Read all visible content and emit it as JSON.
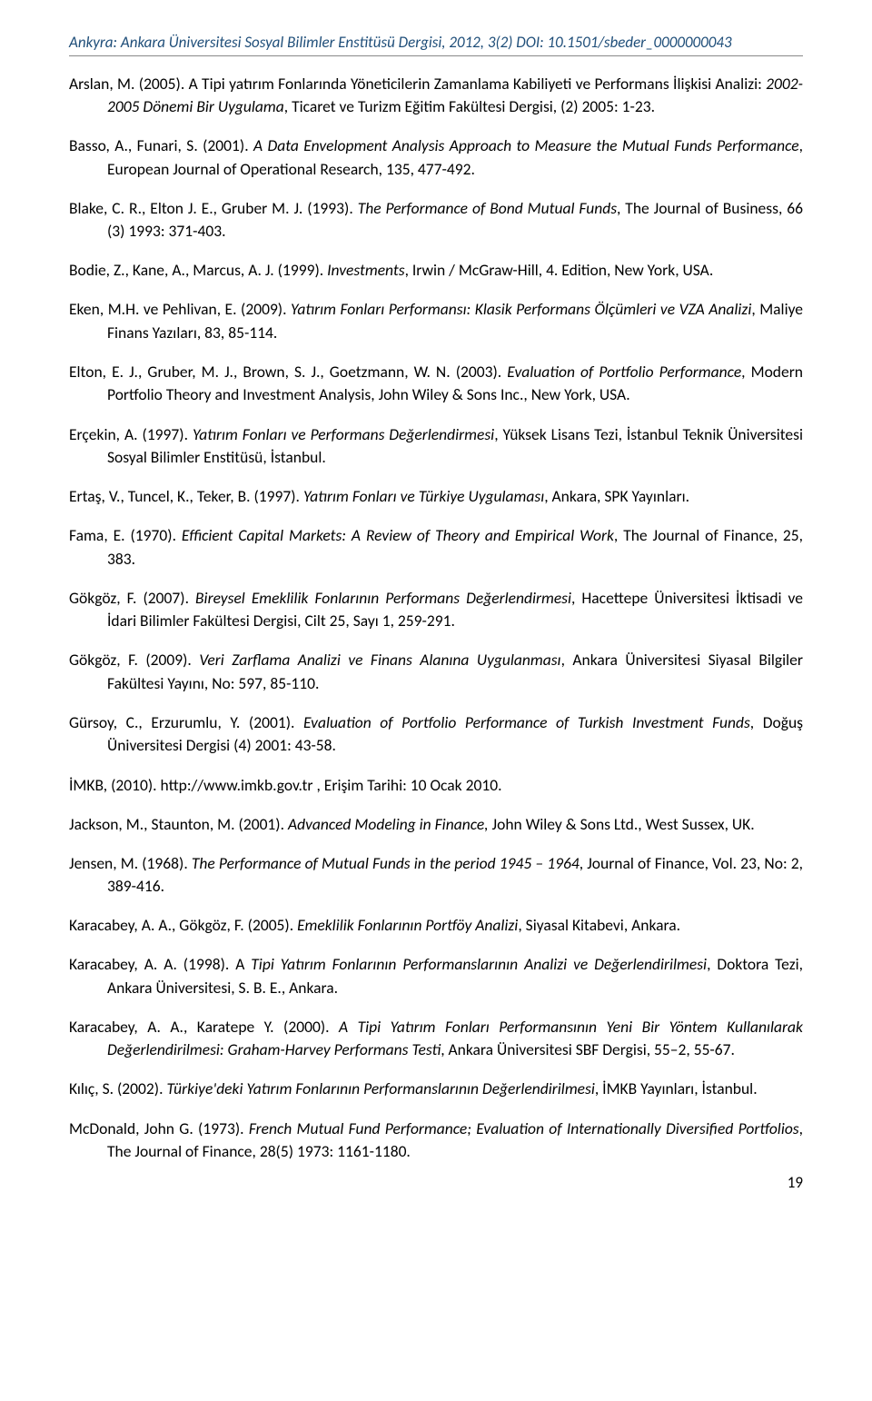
{
  "header": "Ankyra: Ankara Üniversitesi Sosyal Bilimler Enstitüsü Dergisi, 2012, 3(2) DOI: 10.1501/sbeder_0000000043",
  "page_number": "19",
  "refs": [
    [
      {
        "t": "Arslan, M. (2005). A Tipi yatırım Fonlarında Yöneticilerin Zamanlama Kabiliyeti ve Performans İlişkisi Analizi: "
      },
      {
        "t": "2002-2005 Dönemi Bir Uygulama",
        "i": true
      },
      {
        "t": ", Ticaret ve Turizm Eğitim Fakültesi Dergisi, (2) 2005: 1-23."
      }
    ],
    [
      {
        "t": "Basso, A., Funari, S. (2001). "
      },
      {
        "t": "A Data Envelopment Analysis Approach to Measure the Mutual Funds Performance",
        "i": true
      },
      {
        "t": ", European Journal of Operational Research, 135, 477-492."
      }
    ],
    [
      {
        "t": "Blake, C. R., Elton J. E., Gruber M. J. (1993). "
      },
      {
        "t": "The Performance of Bond Mutual Funds",
        "i": true
      },
      {
        "t": ", The Journal of Business, 66 (3) 1993: 371-403."
      }
    ],
    [
      {
        "t": "Bodie, Z., Kane, A., Marcus, A. J. (1999). "
      },
      {
        "t": "Investments",
        "i": true
      },
      {
        "t": ", Irwin / McGraw-Hill, 4. Edition, New York, USA."
      }
    ],
    [
      {
        "t": "Eken, M.H. ve Pehlivan, E. (2009). "
      },
      {
        "t": "Yatırım Fonları Performansı: Klasik Performans Ölçümleri ve VZA Analizi",
        "i": true
      },
      {
        "t": ", Maliye Finans Yazıları, 83, 85-114."
      }
    ],
    [
      {
        "t": "Elton, E. J., Gruber, M. J., Brown, S. J., Goetzmann, W. N. (2003). "
      },
      {
        "t": "Evaluation of Portfolio Performance",
        "i": true
      },
      {
        "t": ", Modern Portfolio Theory and Investment Analysis, John Wiley & Sons Inc., New York, USA."
      }
    ],
    [
      {
        "t": "Erçekin, A. (1997). "
      },
      {
        "t": "Yatırım Fonları ve Performans Değerlendirmesi",
        "i": true
      },
      {
        "t": ", Yüksek Lisans Tezi, İstanbul Teknik Üniversitesi Sosyal Bilimler Enstitüsü, İstanbul."
      }
    ],
    [
      {
        "t": "Ertaş, V., Tuncel, K., Teker, B. (1997). "
      },
      {
        "t": "Yatırım Fonları ve Türkiye Uygulaması",
        "i": true
      },
      {
        "t": ", Ankara, SPK Yayınları."
      }
    ],
    [
      {
        "t": "Fama, E. (1970). "
      },
      {
        "t": "Efficient Capital Markets: A Review of Theory and Empirical Work",
        "i": true
      },
      {
        "t": ", The Journal of Finance, 25, 383."
      }
    ],
    [
      {
        "t": "Gökgöz, F. (2007). "
      },
      {
        "t": "Bireysel Emeklilik Fonlarının Performans Değerlendirmesi",
        "i": true
      },
      {
        "t": ", Hacettepe Üniversitesi İktisadi ve İdari Bilimler Fakültesi Dergisi, Cilt 25, Sayı 1, 259-291."
      }
    ],
    [
      {
        "t": "Gökgöz, F. (2009). "
      },
      {
        "t": "Veri Zarflama Analizi ve Finans Alanına Uygulanması",
        "i": true
      },
      {
        "t": ", Ankara Üniversitesi Siyasal Bilgiler Fakültesi Yayını, No: 597, 85-110."
      }
    ],
    [
      {
        "t": "Gürsoy, C., Erzurumlu, Y. (2001). "
      },
      {
        "t": "Evaluation of Portfolio Performance of Turkish Investment Funds",
        "i": true
      },
      {
        "t": ", Doğuş Üniversitesi Dergisi (4) 2001: 43-58."
      }
    ],
    [
      {
        "t": "İMKB, (2010). http://www.imkb.gov.tr , Erişim Tarihi: 10 Ocak 2010."
      }
    ],
    [
      {
        "t": "Jackson, M., Staunton, M. (2001). "
      },
      {
        "t": "Advanced Modeling in Finance, ",
        "i": true
      },
      {
        "t": "John Wiley & Sons Ltd., West Sussex, UK."
      }
    ],
    [
      {
        "t": "Jensen, M. (1968). "
      },
      {
        "t": "The Performance of Mutual Funds in the period 1945 – 1964",
        "i": true
      },
      {
        "t": ", Journal of Finance, Vol. 23, No: 2, 389-416."
      }
    ],
    [
      {
        "t": "Karacabey, A. A., Gökgöz, F. (2005). "
      },
      {
        "t": "Emeklilik Fonlarının Portföy Analizi",
        "i": true
      },
      {
        "t": ", Siyasal Kitabevi, Ankara."
      }
    ],
    [
      {
        "t": "Karacabey, A. A. (1998). A "
      },
      {
        "t": "Tipi Yatırım Fonlarının Performanslarının Analizi ve Değerlendirilmesi",
        "i": true
      },
      {
        "t": ", Doktora Tezi, Ankara Üniversitesi, S. B. E., Ankara."
      }
    ],
    [
      {
        "t": "Karacabey, A. A., Karatepe Y. (2000). "
      },
      {
        "t": "A Tipi Yatırım Fonları Performansının Yeni Bir Yöntem Kullanılarak Değerlendirilmesi: Graham-Harvey Performans Testi",
        "i": true
      },
      {
        "t": ", Ankara Üniversitesi SBF Dergisi, 55–2, 55-67."
      }
    ],
    [
      {
        "t": "Kılıç, S. (2002). "
      },
      {
        "t": "Türkiye'deki Yatırım Fonlarının Performanslarının Değerlendirilmesi",
        "i": true
      },
      {
        "t": ", İMKB Yayınları, İstanbul."
      }
    ],
    [
      {
        "t": "McDonald, John G. (1973). "
      },
      {
        "t": "French Mutual Fund Performance; Evaluation of Internationally Diversified Portfolios",
        "i": true
      },
      {
        "t": ", The Journal of Finance, 28(5) 1973: 1161-1180."
      }
    ]
  ]
}
